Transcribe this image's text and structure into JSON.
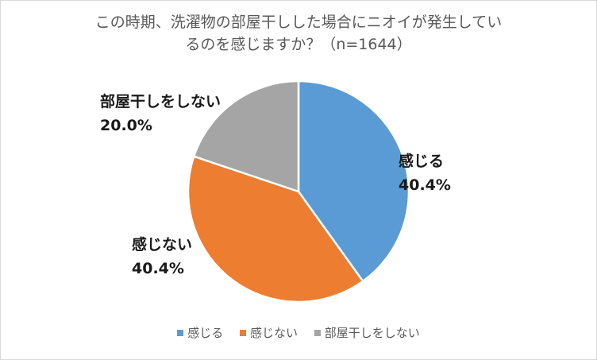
{
  "chart_data": {
    "type": "pie",
    "title_lines": [
      "この時期、洗濯物の部屋干しした場合にニオイが発生してい",
      "るのを感じますか？（n=1644）"
    ],
    "slices": [
      {
        "name": "感じる",
        "value": 40.4,
        "label": "40.4%",
        "color": "#5B9BD5"
      },
      {
        "name": "感じない",
        "value": 40.4,
        "label": "40.4%",
        "color": "#ED7D31"
      },
      {
        "name": "部屋干しをしない",
        "value": 20.0,
        "label": "20.0%",
        "color": "#A5A5A5"
      }
    ],
    "start_angle": "12-o'clock",
    "direction": "clockwise",
    "legend_position": "bottom"
  }
}
